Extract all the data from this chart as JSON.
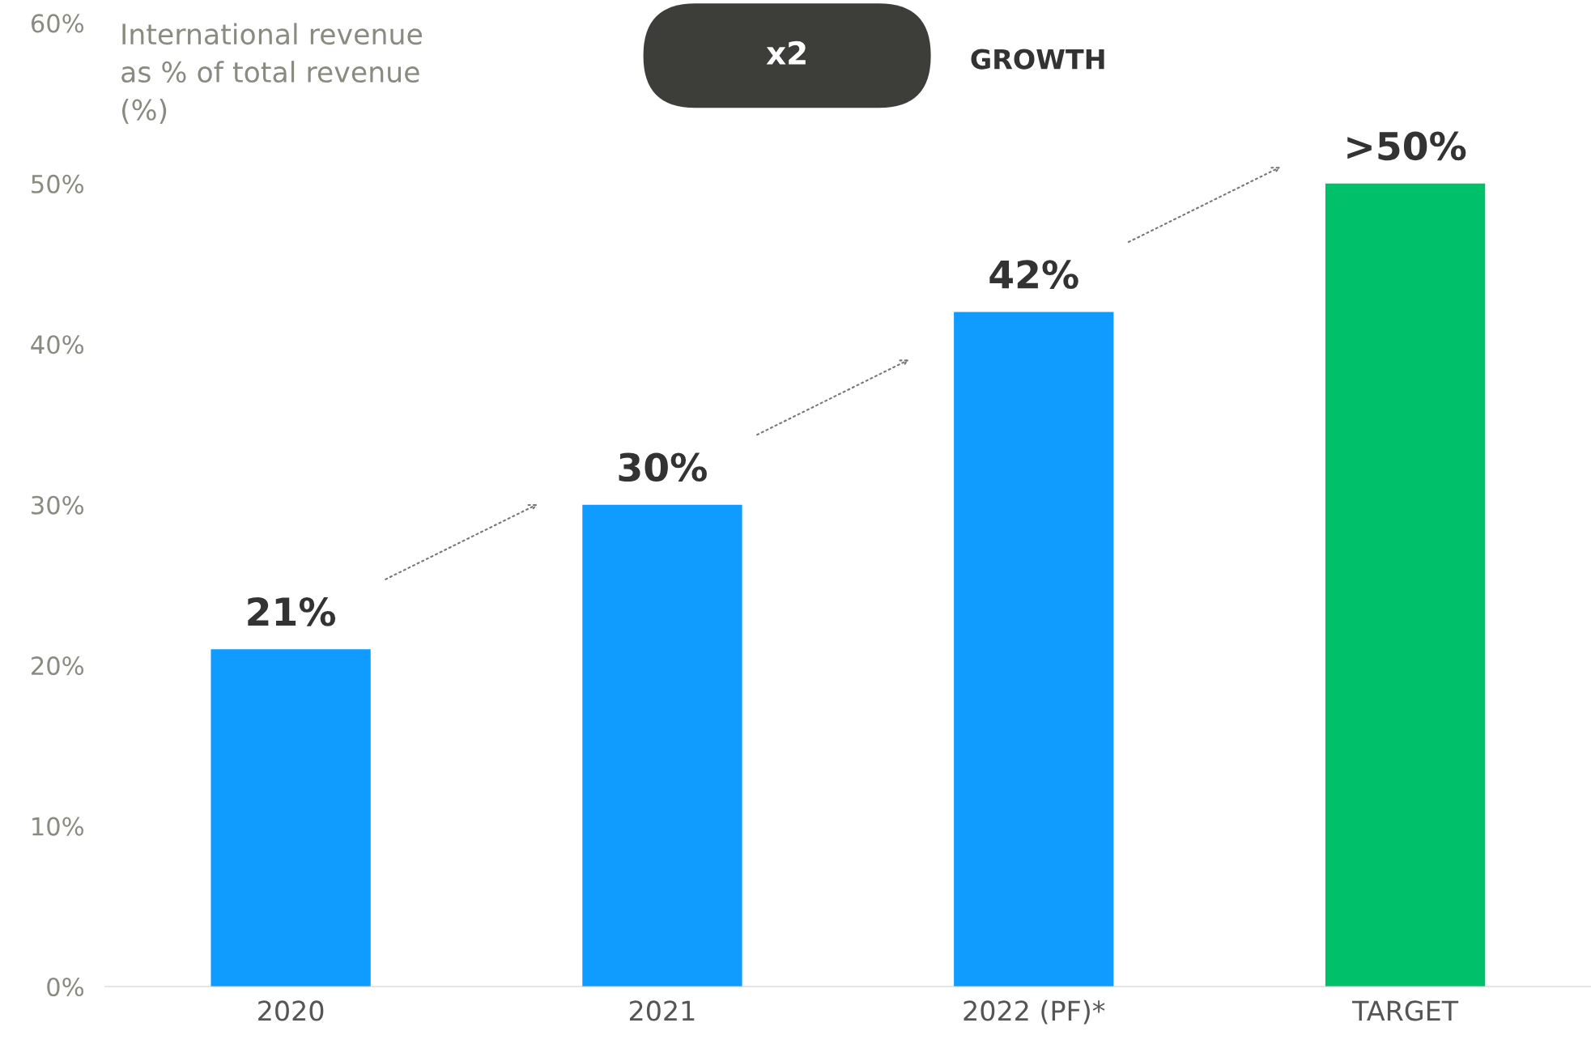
{
  "chart_data": {
    "type": "bar",
    "ylabel": "International revenue\nas % of total revenue\n(%)",
    "categories": [
      "2020",
      "2021",
      "2022 (PF)*",
      "TARGET"
    ],
    "values": [
      21,
      30,
      42,
      50
    ],
    "colors": [
      "#0f9bff",
      "#0f9bff",
      "#0f9bff",
      "#00c16a"
    ],
    "value_labels": [
      "21%",
      "30%",
      "42%",
      ">50%"
    ],
    "ylim": [
      0,
      60
    ],
    "yticks": [
      {
        "value": 0,
        "label": "0%"
      },
      {
        "value": 10,
        "label": "10%"
      },
      {
        "value": 20,
        "label": "20%"
      },
      {
        "value": 30,
        "label": "30%"
      },
      {
        "value": 40,
        "label": "40%"
      },
      {
        "value": 50,
        "label": "50%"
      },
      {
        "value": 60,
        "label": "60%"
      }
    ],
    "grid": false,
    "annotations": [
      "x2",
      "GROWTH"
    ]
  }
}
